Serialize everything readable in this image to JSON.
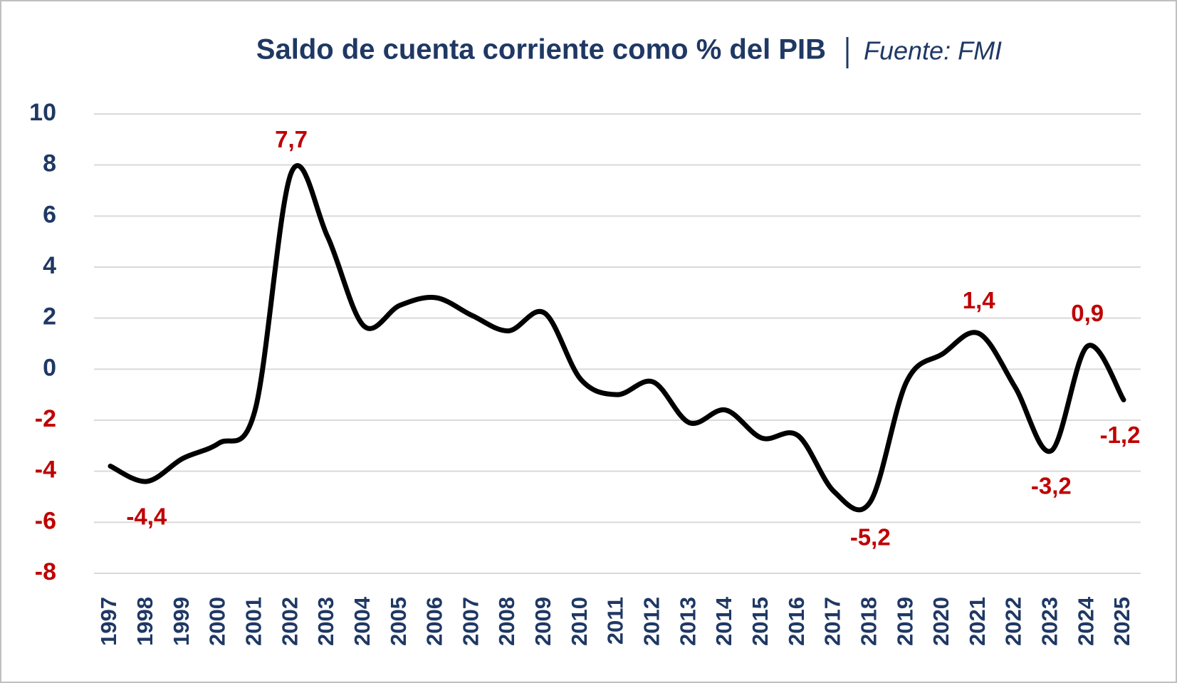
{
  "chart_data": {
    "type": "line",
    "title": "Saldo de cuenta corriente como % del PIB",
    "subtitle": "Fuente: FMI",
    "categories": [
      "1997",
      "1998",
      "1999",
      "2000",
      "2001",
      "2002",
      "2003",
      "2004",
      "2005",
      "2006",
      "2007",
      "2008",
      "2009",
      "2010",
      "2011",
      "2012",
      "2013",
      "2014",
      "2015",
      "2016",
      "2017",
      "2018",
      "2019",
      "2020",
      "2021",
      "2022",
      "2023",
      "2024",
      "2025"
    ],
    "series": [
      {
        "name": "Saldo de cuenta corriente",
        "color": "#000000",
        "values": [
          -3.8,
          -4.4,
          -3.5,
          -2.9,
          -1.6,
          7.7,
          5.2,
          1.7,
          2.5,
          2.8,
          2.1,
          1.5,
          2.2,
          -0.4,
          -1.0,
          -0.5,
          -2.1,
          -1.6,
          -2.7,
          -2.6,
          -4.8,
          -5.2,
          -0.5,
          0.6,
          1.4,
          -0.7,
          -3.2,
          0.9,
          -1.2
        ],
        "value_labels": [
          null,
          "-4,4",
          null,
          null,
          null,
          "7,7",
          null,
          null,
          null,
          null,
          null,
          null,
          null,
          null,
          null,
          null,
          null,
          null,
          null,
          null,
          null,
          "-5,2",
          null,
          null,
          "1,4",
          null,
          "-3,2",
          "0,9",
          "-1,2"
        ]
      }
    ],
    "ylim": [
      -8,
      10
    ],
    "yticks": [
      -8,
      -6,
      -4,
      -2,
      0,
      2,
      4,
      6,
      8,
      10
    ],
    "grid": true
  }
}
